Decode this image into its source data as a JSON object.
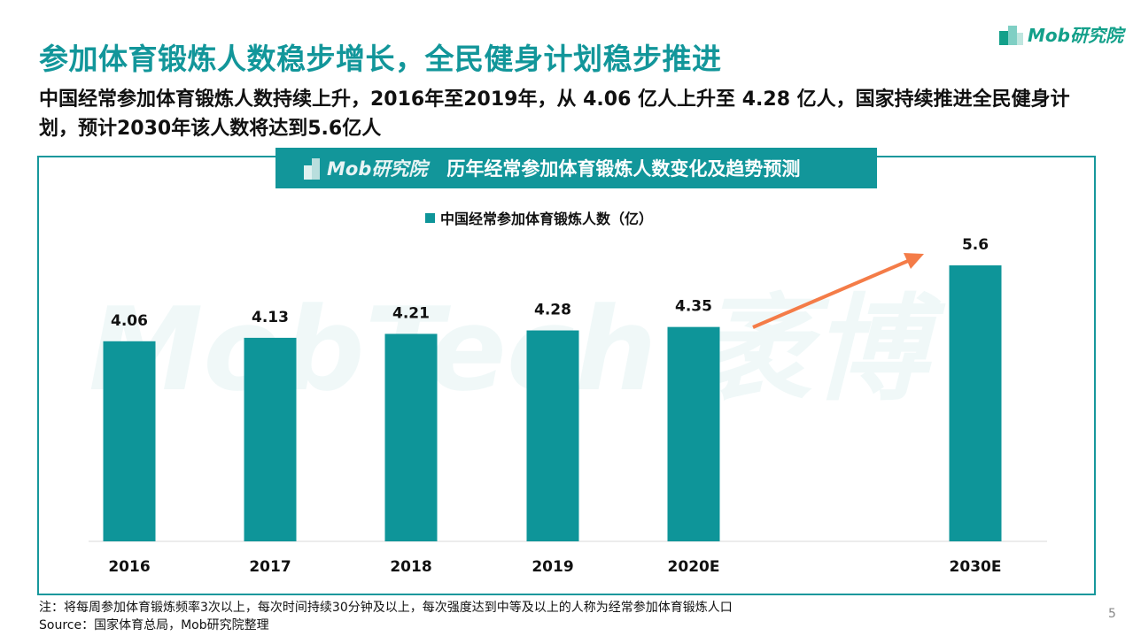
{
  "title": "参加体育锻炼人数稳步增长，全民健身计划稳步推进",
  "subtitle": "中国经常参加体育锻炼人数持续上升，2016年至2019年，从 4.06 亿人上升至 4.28 亿人，国家持续推进全民健身计划，预计2030年该人数将达到5.6亿人",
  "logo": {
    "text": "Mob研究院"
  },
  "watermark": "MobTech 袤博",
  "chart_header": {
    "logo_text": "Mob研究院",
    "title": "历年经常参加体育锻炼人数变化及趋势预测"
  },
  "colors": {
    "bar": "#0e9599",
    "title": "#12969a",
    "arrow": "#f47c48"
  },
  "chart_data": {
    "type": "bar",
    "title": "历年经常参加体育锻炼人数变化及趋势预测",
    "categories": [
      "2016",
      "2017",
      "2018",
      "2019",
      "2020E",
      "2030E"
    ],
    "series": [
      {
        "name": "中国经常参加体育锻炼人数（亿）",
        "values": [
          4.06,
          4.13,
          4.21,
          4.28,
          4.35,
          5.6
        ]
      }
    ],
    "legend": "top-center",
    "grid": false,
    "ylim": [
      0,
      6.3
    ],
    "annotations": [
      "upward trend arrow from 2020E to 2030E"
    ]
  },
  "footer": {
    "note": "注：将每周参加体育锻炼频率3次以上，每次时间持续30分钟及以上，每次强度达到中等及以上的人称为经常参加体育锻炼人口",
    "source": "Source：国家体育总局，Mob研究院整理",
    "page": "5"
  }
}
